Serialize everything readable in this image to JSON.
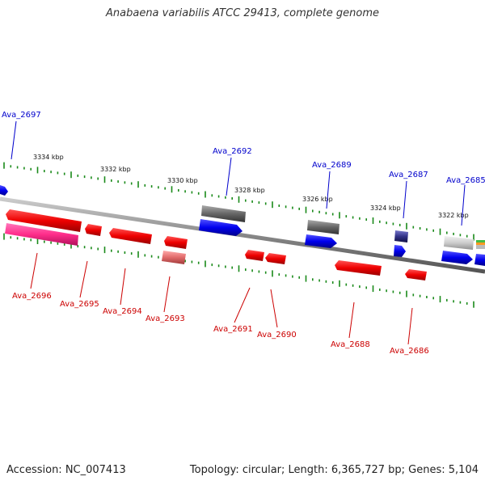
{
  "title": "Anabaena variabilis ATCC 29413, complete genome",
  "footer": {
    "accession": "Accession: NC_007413",
    "summary": "Topology: circular; Length: 6,365,727 bp; Genes: 5,104"
  },
  "scale_labels": [
    "3334 kbp",
    "3332 kbp",
    "3330 kbp",
    "3328 kbp",
    "3326 kbp",
    "3324 kbp",
    "3322 kbp"
  ],
  "colors": {
    "forward_label": "#0000cc",
    "reverse_label": "#cc0000",
    "backbone": "#888888",
    "tick": "#1a8a1a",
    "forward_gene": "#0000ee",
    "reverse_gene": "#ee0000",
    "rna_gene": "#ff2d8a",
    "pseudo_gene": "#666666"
  },
  "forward_labels": [
    "Ava_2697",
    "Ava_2692",
    "Ava_2689",
    "Ava_2687",
    "Ava_2685"
  ],
  "reverse_labels": [
    "Ava_2696",
    "Ava_2695",
    "Ava_2694",
    "Ava_2693",
    "Ava_2691",
    "Ava_2690",
    "Ava_2688",
    "Ava_2686"
  ]
}
